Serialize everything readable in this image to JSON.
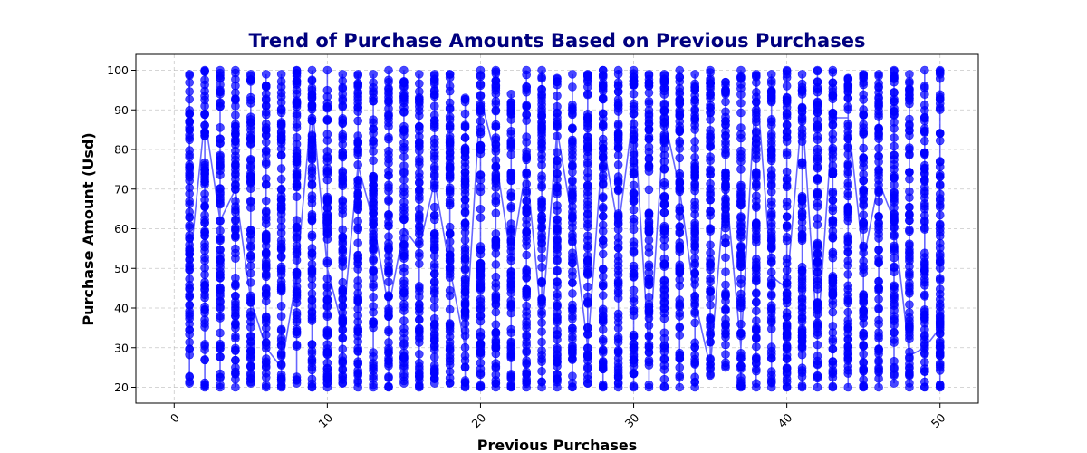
{
  "chart_data": {
    "type": "scatter",
    "title": "Trend of Purchase Amounts Based on Previous Purchases",
    "xlabel": "Previous Purchases",
    "ylabel": "Purchase Amount (Usd)",
    "xlim": [
      -2.5,
      52.5
    ],
    "ylim": [
      16,
      104
    ],
    "x_ticks": [
      0,
      10,
      20,
      30,
      40,
      50
    ],
    "y_ticks": [
      20,
      30,
      40,
      50,
      60,
      70,
      80,
      90,
      100
    ],
    "grid": true,
    "colors": {
      "marker": "#0000ff",
      "line": "#3333ff",
      "title": "#00007f"
    },
    "series": [
      {
        "x": [
          1,
          2,
          3,
          4,
          5,
          6,
          7,
          8,
          9,
          10,
          11,
          12,
          13,
          14,
          15,
          16,
          17,
          18,
          19,
          20,
          21,
          22,
          23,
          24,
          25,
          26,
          27,
          28,
          29,
          30,
          31,
          32,
          33,
          34,
          35,
          36,
          37,
          38,
          39,
          40,
          41,
          42,
          43,
          44,
          45,
          46,
          47,
          48,
          49,
          50
        ],
        "y_min": [
          21,
          20,
          20,
          20,
          21,
          20,
          20,
          21,
          20,
          20,
          21,
          20,
          20,
          20,
          21,
          20,
          21,
          21,
          20,
          20,
          20,
          20,
          20,
          20,
          20,
          20,
          21,
          20,
          20,
          20,
          20,
          20,
          20,
          20,
          23,
          25,
          20,
          20,
          20,
          20,
          20,
          20,
          20,
          20,
          20,
          20,
          21,
          20,
          20,
          20
        ],
        "y_max": [
          99,
          100,
          100,
          100,
          99,
          99,
          99,
          100,
          100,
          100,
          99,
          99,
          99,
          100,
          100,
          99,
          99,
          99,
          93,
          100,
          100,
          94,
          100,
          100,
          98,
          99,
          99,
          100,
          100,
          100,
          99,
          99,
          100,
          99,
          100,
          97,
          100,
          99,
          99,
          100,
          99,
          100,
          100,
          98,
          99,
          99,
          100,
          99,
          100,
          100
        ],
        "trend_y": [
          50,
          88,
          62,
          70,
          42,
          30,
          25,
          48,
          92,
          50,
          35,
          76,
          62,
          40,
          60,
          55,
          72,
          50,
          30,
          93,
          78,
          52,
          76,
          36,
          85,
          62,
          30,
          82,
          60,
          90,
          28,
          88,
          70,
          42,
          25,
          72,
          30,
          98,
          48,
          45,
          90,
          32,
          88,
          88,
          52,
          72,
          62,
          28,
          30,
          35
        ]
      }
    ]
  }
}
